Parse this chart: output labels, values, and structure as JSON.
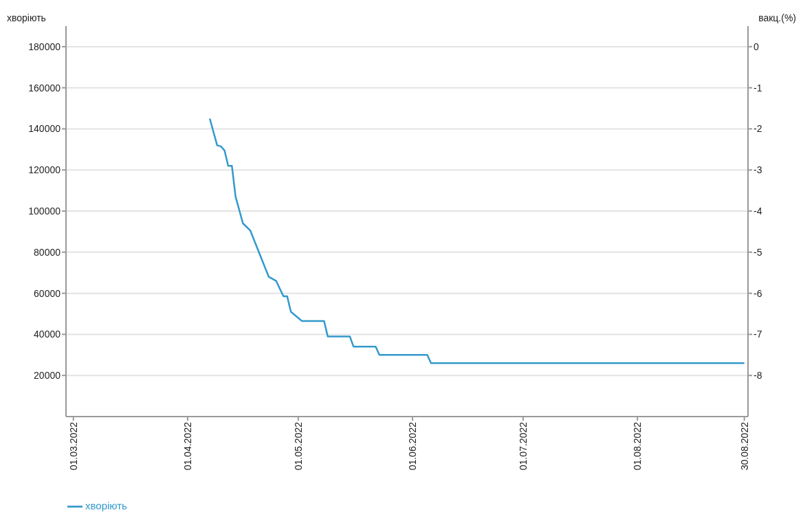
{
  "chart_data": {
    "type": "line",
    "ylabel": "хворіють",
    "y2label": "вакц.(%)",
    "x": [
      "2022-04-07",
      "2022-04-09",
      "2022-04-10",
      "2022-04-11",
      "2022-04-12",
      "2022-04-13",
      "2022-04-14",
      "2022-04-16",
      "2022-04-18",
      "2022-04-23",
      "2022-04-25",
      "2022-04-27",
      "2022-04-28",
      "2022-04-29",
      "2022-05-02",
      "2022-05-08",
      "2022-05-09",
      "2022-05-15",
      "2022-05-16",
      "2022-05-22",
      "2022-05-23",
      "2022-06-05",
      "2022-06-06",
      "2022-08-30"
    ],
    "series": [
      {
        "name": "хворіють",
        "color": "#3399cc",
        "values": [
          145000,
          132000,
          131500,
          129500,
          122000,
          122000,
          107000,
          94000,
          90500,
          68000,
          66000,
          58500,
          58500,
          51000,
          46500,
          46500,
          39000,
          39000,
          34000,
          34000,
          30000,
          30000,
          26000,
          26000
        ]
      }
    ],
    "xlim": [
      "2022-02-27",
      "2022-08-31"
    ],
    "xticks": [
      {
        "value": "2022-03-01",
        "label": "01.03.2022"
      },
      {
        "value": "2022-04-01",
        "label": "01.04.2022"
      },
      {
        "value": "2022-05-01",
        "label": "01.05.2022"
      },
      {
        "value": "2022-06-01",
        "label": "01.06.2022"
      },
      {
        "value": "2022-07-01",
        "label": "01.07.2022"
      },
      {
        "value": "2022-08-01",
        "label": "01.08.2022"
      },
      {
        "value": "2022-08-30",
        "label": "30.08.2022"
      }
    ],
    "ylim": [
      0,
      190000
    ],
    "yticks": [
      20000,
      40000,
      60000,
      80000,
      100000,
      120000,
      140000,
      160000,
      180000
    ],
    "y2lim": [
      -9,
      0.5
    ],
    "y2ticks": [
      -8,
      -7,
      -6,
      -5,
      -4,
      -3,
      -2,
      -1,
      0
    ],
    "grid": "y",
    "legend": "bottom left",
    "marker": "none",
    "line_style": "solid"
  }
}
